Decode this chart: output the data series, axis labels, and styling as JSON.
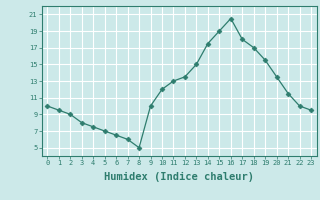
{
  "x": [
    0,
    1,
    2,
    3,
    4,
    5,
    6,
    7,
    8,
    9,
    10,
    11,
    12,
    13,
    14,
    15,
    16,
    17,
    18,
    19,
    20,
    21,
    22,
    23
  ],
  "y": [
    10.0,
    9.5,
    9.0,
    8.0,
    7.5,
    7.0,
    6.5,
    6.0,
    5.0,
    10.0,
    12.0,
    13.0,
    13.5,
    15.0,
    17.5,
    19.0,
    20.5,
    18.0,
    17.0,
    15.5,
    13.5,
    11.5,
    10.0,
    9.5
  ],
  "xlabel": "Humidex (Indice chaleur)",
  "xlim_min": -0.5,
  "xlim_max": 23.5,
  "ylim_min": 4,
  "ylim_max": 22,
  "yticks": [
    5,
    7,
    9,
    11,
    13,
    15,
    17,
    19,
    21
  ],
  "xticks": [
    0,
    1,
    2,
    3,
    4,
    5,
    6,
    7,
    8,
    9,
    10,
    11,
    12,
    13,
    14,
    15,
    16,
    17,
    18,
    19,
    20,
    21,
    22,
    23
  ],
  "line_color": "#2e7d6e",
  "marker": "D",
  "marker_size": 2.5,
  "bg_color": "#cce9e9",
  "grid_color": "#ffffff",
  "tick_color": "#2e7d6e",
  "label_color": "#2e7d6e",
  "tick_fontsize": 5.0,
  "xlabel_fontsize": 7.5
}
